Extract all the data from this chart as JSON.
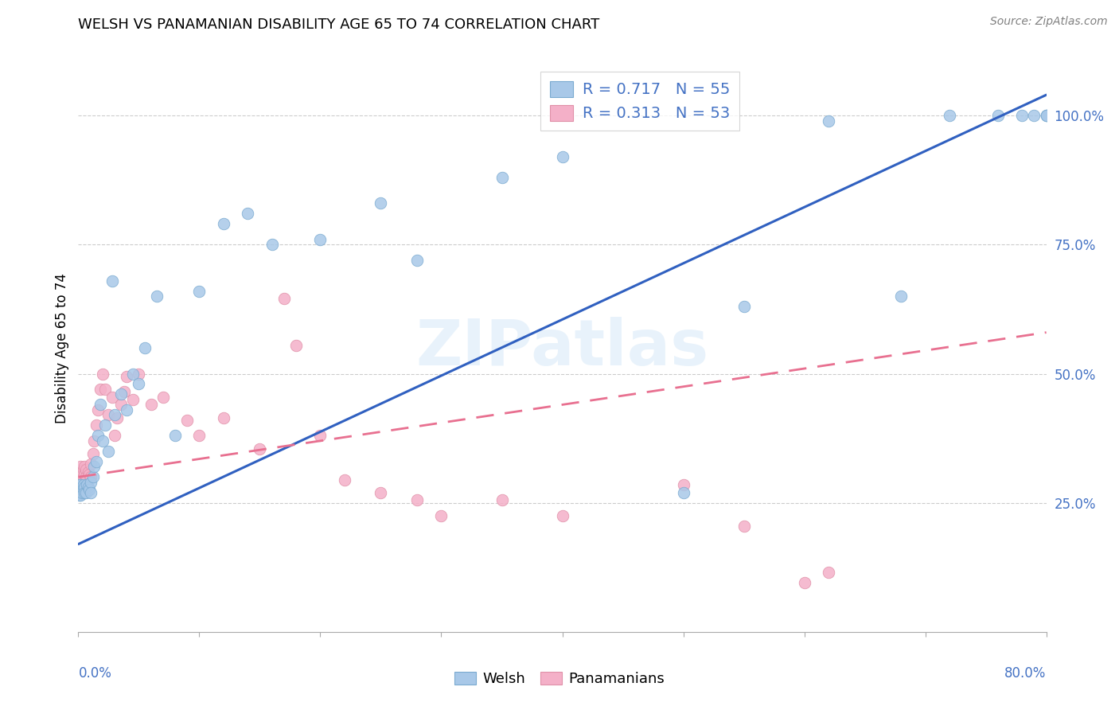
{
  "title": "WELSH VS PANAMANIAN DISABILITY AGE 65 TO 74 CORRELATION CHART",
  "source": "Source: ZipAtlas.com",
  "ylabel": "Disability Age 65 to 74",
  "welsh_color": "#a8c8e8",
  "welsh_edge": "#7aaad0",
  "pan_color": "#f4b0c8",
  "pan_edge": "#e090a8",
  "welsh_line_color": "#3060c0",
  "pan_line_color": "#e87090",
  "welsh_R": "0.717",
  "welsh_N": "55",
  "pan_R": "0.313",
  "pan_N": "53",
  "xlim": [
    0.0,
    0.8
  ],
  "ylim": [
    0.0,
    1.1
  ],
  "blue_trend": [
    0.0,
    0.17,
    0.8,
    1.04
  ],
  "pink_trend": [
    0.0,
    0.3,
    0.8,
    0.58
  ],
  "welsh_pts_x": [
    0.001,
    0.001,
    0.001,
    0.002,
    0.002,
    0.002,
    0.003,
    0.003,
    0.004,
    0.004,
    0.005,
    0.005,
    0.006,
    0.007,
    0.008,
    0.009,
    0.01,
    0.01,
    0.012,
    0.013,
    0.015,
    0.016,
    0.018,
    0.02,
    0.022,
    0.025,
    0.028,
    0.03,
    0.035,
    0.04,
    0.045,
    0.05,
    0.055,
    0.065,
    0.08,
    0.1,
    0.12,
    0.14,
    0.16,
    0.2,
    0.25,
    0.28,
    0.35,
    0.4,
    0.5,
    0.55,
    0.62,
    0.68,
    0.72,
    0.76,
    0.78,
    0.79,
    0.8,
    0.8,
    0.8
  ],
  "welsh_pts_y": [
    0.285,
    0.275,
    0.265,
    0.285,
    0.275,
    0.265,
    0.28,
    0.27,
    0.285,
    0.275,
    0.28,
    0.27,
    0.27,
    0.285,
    0.28,
    0.275,
    0.29,
    0.27,
    0.3,
    0.32,
    0.33,
    0.38,
    0.44,
    0.37,
    0.4,
    0.35,
    0.68,
    0.42,
    0.46,
    0.43,
    0.5,
    0.48,
    0.55,
    0.65,
    0.38,
    0.66,
    0.79,
    0.81,
    0.75,
    0.76,
    0.83,
    0.72,
    0.88,
    0.92,
    0.27,
    0.63,
    0.99,
    0.65,
    1.0,
    1.0,
    1.0,
    1.0,
    1.0,
    1.0,
    1.0
  ],
  "pan_pts_x": [
    0.001,
    0.001,
    0.002,
    0.002,
    0.002,
    0.003,
    0.003,
    0.004,
    0.004,
    0.005,
    0.005,
    0.006,
    0.006,
    0.007,
    0.008,
    0.009,
    0.01,
    0.01,
    0.012,
    0.013,
    0.015,
    0.016,
    0.018,
    0.02,
    0.022,
    0.025,
    0.028,
    0.03,
    0.032,
    0.035,
    0.038,
    0.04,
    0.045,
    0.05,
    0.06,
    0.07,
    0.09,
    0.1,
    0.12,
    0.15,
    0.18,
    0.2,
    0.22,
    0.25,
    0.28,
    0.3,
    0.35,
    0.4,
    0.5,
    0.55,
    0.6,
    0.62,
    0.17
  ],
  "pan_pts_y": [
    0.295,
    0.275,
    0.32,
    0.3,
    0.28,
    0.31,
    0.295,
    0.315,
    0.3,
    0.32,
    0.305,
    0.315,
    0.3,
    0.295,
    0.31,
    0.305,
    0.325,
    0.3,
    0.345,
    0.37,
    0.4,
    0.43,
    0.47,
    0.5,
    0.47,
    0.42,
    0.455,
    0.38,
    0.415,
    0.44,
    0.465,
    0.495,
    0.45,
    0.5,
    0.44,
    0.455,
    0.41,
    0.38,
    0.415,
    0.355,
    0.555,
    0.38,
    0.295,
    0.27,
    0.255,
    0.225,
    0.255,
    0.225,
    0.285,
    0.205,
    0.095,
    0.115,
    0.645
  ]
}
